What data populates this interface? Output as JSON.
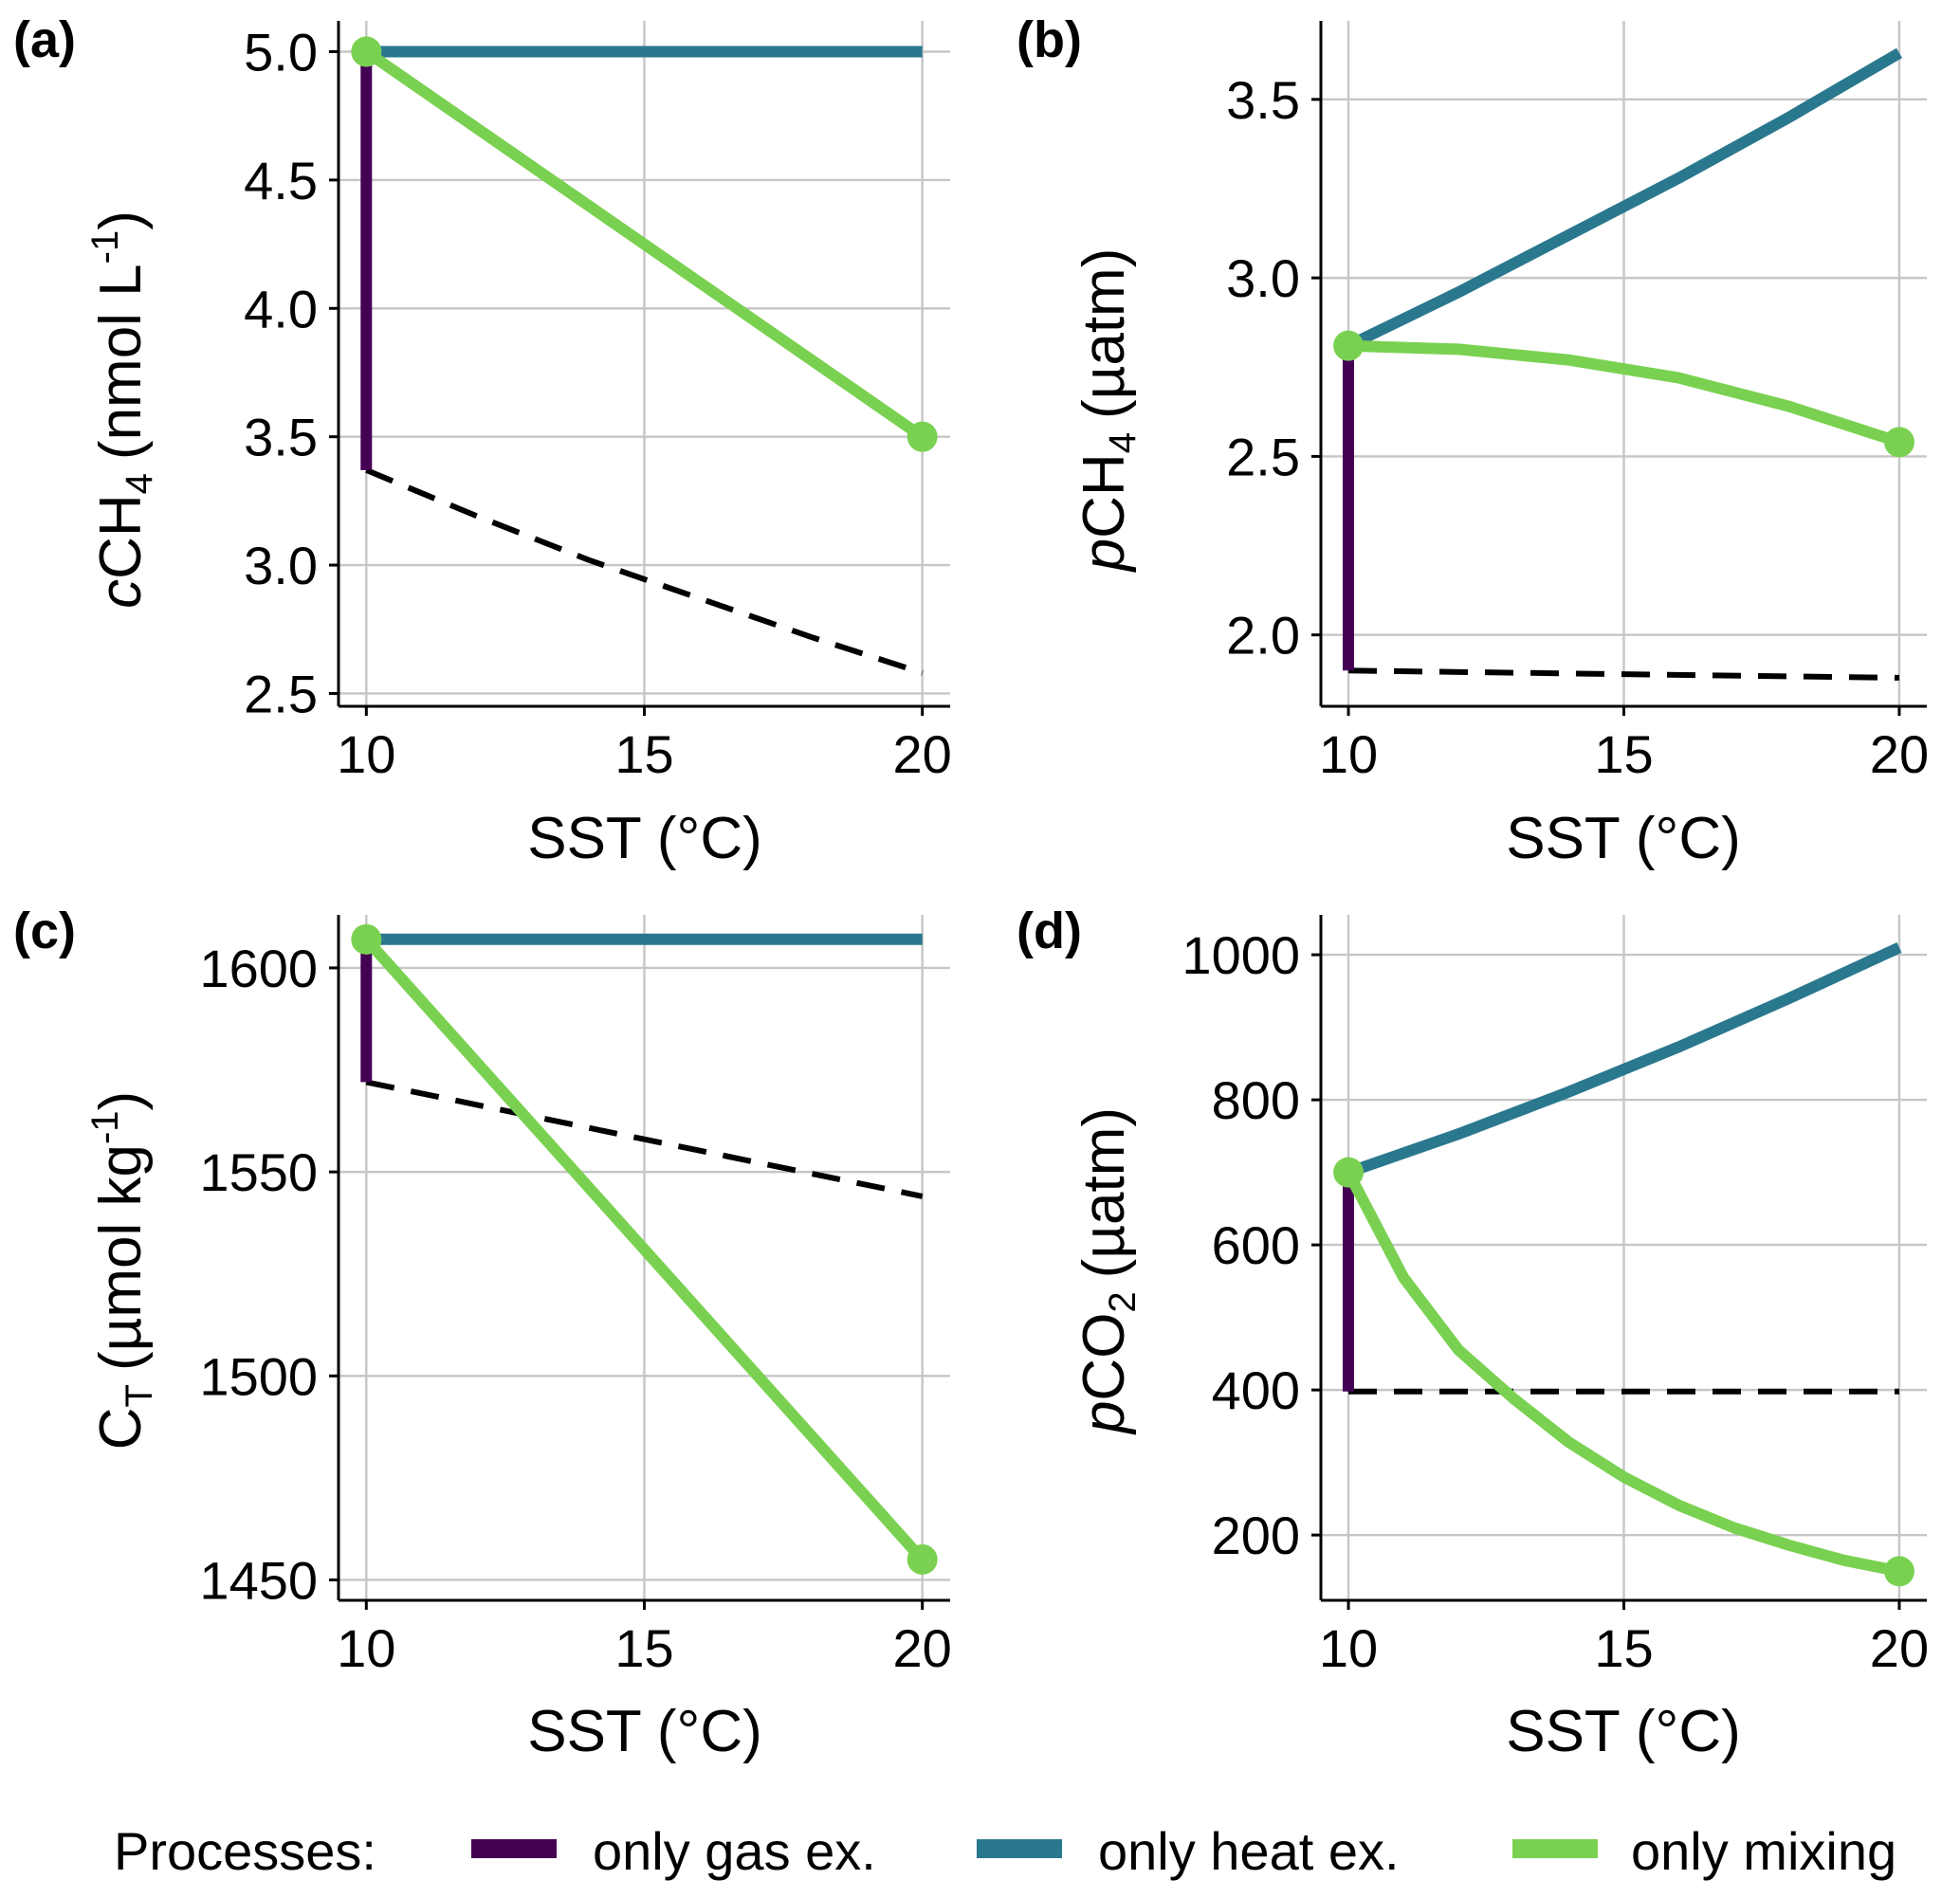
{
  "colors": {
    "gas": "#440154",
    "heat": "#2a788e",
    "mixing": "#7ad151",
    "equilibrium": "#000000"
  },
  "legend": {
    "title": "Processes:",
    "items": [
      {
        "key": "gas",
        "label": "only gas ex."
      },
      {
        "key": "heat",
        "label": "only heat ex."
      },
      {
        "key": "mixing",
        "label": "only mixing"
      }
    ]
  },
  "chart_data": [
    {
      "type": "line",
      "panel": "(a)",
      "xlabel": "SST (°C)",
      "ylabel_parts": {
        "italic": "c",
        "base": "CH",
        "sub": "4",
        "unit": "(nmol L",
        "sup": "-1",
        "end": ")"
      },
      "xlim": [
        9.5,
        20.5
      ],
      "ylim": [
        2.45,
        5.12
      ],
      "xticks": [
        10,
        15,
        20
      ],
      "yticks": [
        2.5,
        3.0,
        3.5,
        4.0,
        4.5,
        5.0
      ],
      "ytick_labels": [
        "2.5",
        "3.0",
        "3.5",
        "4.0",
        "4.5",
        "5.0"
      ],
      "series": [
        {
          "name": "only gas ex.",
          "key": "gas",
          "x": [
            10,
            10
          ],
          "y": [
            5.0,
            3.37
          ]
        },
        {
          "name": "only heat ex.",
          "key": "heat",
          "x": [
            10,
            20
          ],
          "y": [
            5.0,
            5.0
          ]
        },
        {
          "name": "only mixing",
          "key": "mixing",
          "x": [
            10,
            20
          ],
          "y": [
            5.0,
            3.5
          ],
          "markers": true
        },
        {
          "name": "equilibrium",
          "key": "equilibrium",
          "dashed": true,
          "x": [
            10,
            12,
            14,
            16,
            18,
            20
          ],
          "y": [
            3.37,
            3.19,
            3.02,
            2.87,
            2.72,
            2.58
          ]
        }
      ]
    },
    {
      "type": "line",
      "panel": "(b)",
      "xlabel": "SST (°C)",
      "ylabel_parts": {
        "italic": "p",
        "base": "CH",
        "sub": "4",
        "unit": "(µatm)",
        "sup": "",
        "end": ""
      },
      "xlim": [
        9.5,
        20.5
      ],
      "ylim": [
        1.8,
        3.72
      ],
      "xticks": [
        10,
        15,
        20
      ],
      "yticks": [
        2.0,
        2.5,
        3.0,
        3.5
      ],
      "ytick_labels": [
        "2.0",
        "2.5",
        "3.0",
        "3.5"
      ],
      "series": [
        {
          "name": "only gas ex.",
          "key": "gas",
          "x": [
            10,
            10
          ],
          "y": [
            2.81,
            1.9
          ]
        },
        {
          "name": "only heat ex.",
          "key": "heat",
          "x": [
            10,
            12,
            14,
            16,
            18,
            20
          ],
          "y": [
            2.81,
            2.96,
            3.12,
            3.28,
            3.45,
            3.63
          ]
        },
        {
          "name": "only mixing",
          "key": "mixing",
          "x": [
            10,
            12,
            14,
            16,
            18,
            20
          ],
          "y": [
            2.81,
            2.8,
            2.77,
            2.72,
            2.64,
            2.54
          ],
          "markers": true
        },
        {
          "name": "equilibrium",
          "key": "equilibrium",
          "dashed": true,
          "x": [
            10,
            15,
            20
          ],
          "y": [
            1.9,
            1.89,
            1.88
          ]
        }
      ]
    },
    {
      "type": "line",
      "panel": "(c)",
      "xlabel": "SST (°C)",
      "ylabel_parts": {
        "italic": "",
        "base": "C",
        "sub": "T",
        "unit": "(µmol kg",
        "sup": "-1",
        "end": ")"
      },
      "xlim": [
        9.5,
        20.5
      ],
      "ylim": [
        1445,
        1613
      ],
      "xticks": [
        10,
        15,
        20
      ],
      "yticks": [
        1450,
        1500,
        1550,
        1600
      ],
      "ytick_labels": [
        "1450",
        "1500",
        "1550",
        "1600"
      ],
      "series": [
        {
          "name": "only gas ex.",
          "key": "gas",
          "x": [
            10,
            10
          ],
          "y": [
            1607,
            1572
          ]
        },
        {
          "name": "only heat ex.",
          "key": "heat",
          "x": [
            10,
            20
          ],
          "y": [
            1607,
            1607
          ]
        },
        {
          "name": "only mixing",
          "key": "mixing",
          "x": [
            10,
            20
          ],
          "y": [
            1607,
            1455
          ],
          "markers": true
        },
        {
          "name": "equilibrium",
          "key": "equilibrium",
          "dashed": true,
          "x": [
            10,
            15,
            20
          ],
          "y": [
            1572,
            1558,
            1544
          ]
        }
      ]
    },
    {
      "type": "line",
      "panel": "(d)",
      "xlabel": "SST (°C)",
      "ylabel_parts": {
        "italic": "p",
        "base": "CO",
        "sub": "2",
        "unit": "(µatm)",
        "sup": "",
        "end": ""
      },
      "xlim": [
        9.5,
        20.5
      ],
      "ylim": [
        110,
        1055
      ],
      "xticks": [
        10,
        15,
        20
      ],
      "yticks": [
        200,
        400,
        600,
        800,
        1000
      ],
      "ytick_labels": [
        "200",
        "400",
        "600",
        "800",
        "1000"
      ],
      "series": [
        {
          "name": "only gas ex.",
          "key": "gas",
          "x": [
            10,
            10
          ],
          "y": [
            700,
            398
          ]
        },
        {
          "name": "only heat ex.",
          "key": "heat",
          "x": [
            10,
            12,
            14,
            16,
            18,
            20
          ],
          "y": [
            700,
            753,
            811,
            873,
            940,
            1010
          ]
        },
        {
          "name": "only mixing",
          "key": "mixing",
          "x": [
            10,
            11,
            12,
            13,
            14,
            15,
            16,
            17,
            18,
            19,
            20
          ],
          "y": [
            700,
            555,
            455,
            388,
            328,
            280,
            241,
            210,
            186,
            165,
            150
          ],
          "markers": true
        },
        {
          "name": "equilibrium",
          "key": "equilibrium",
          "dashed": true,
          "x": [
            10,
            20
          ],
          "y": [
            398,
            398
          ]
        }
      ]
    }
  ]
}
